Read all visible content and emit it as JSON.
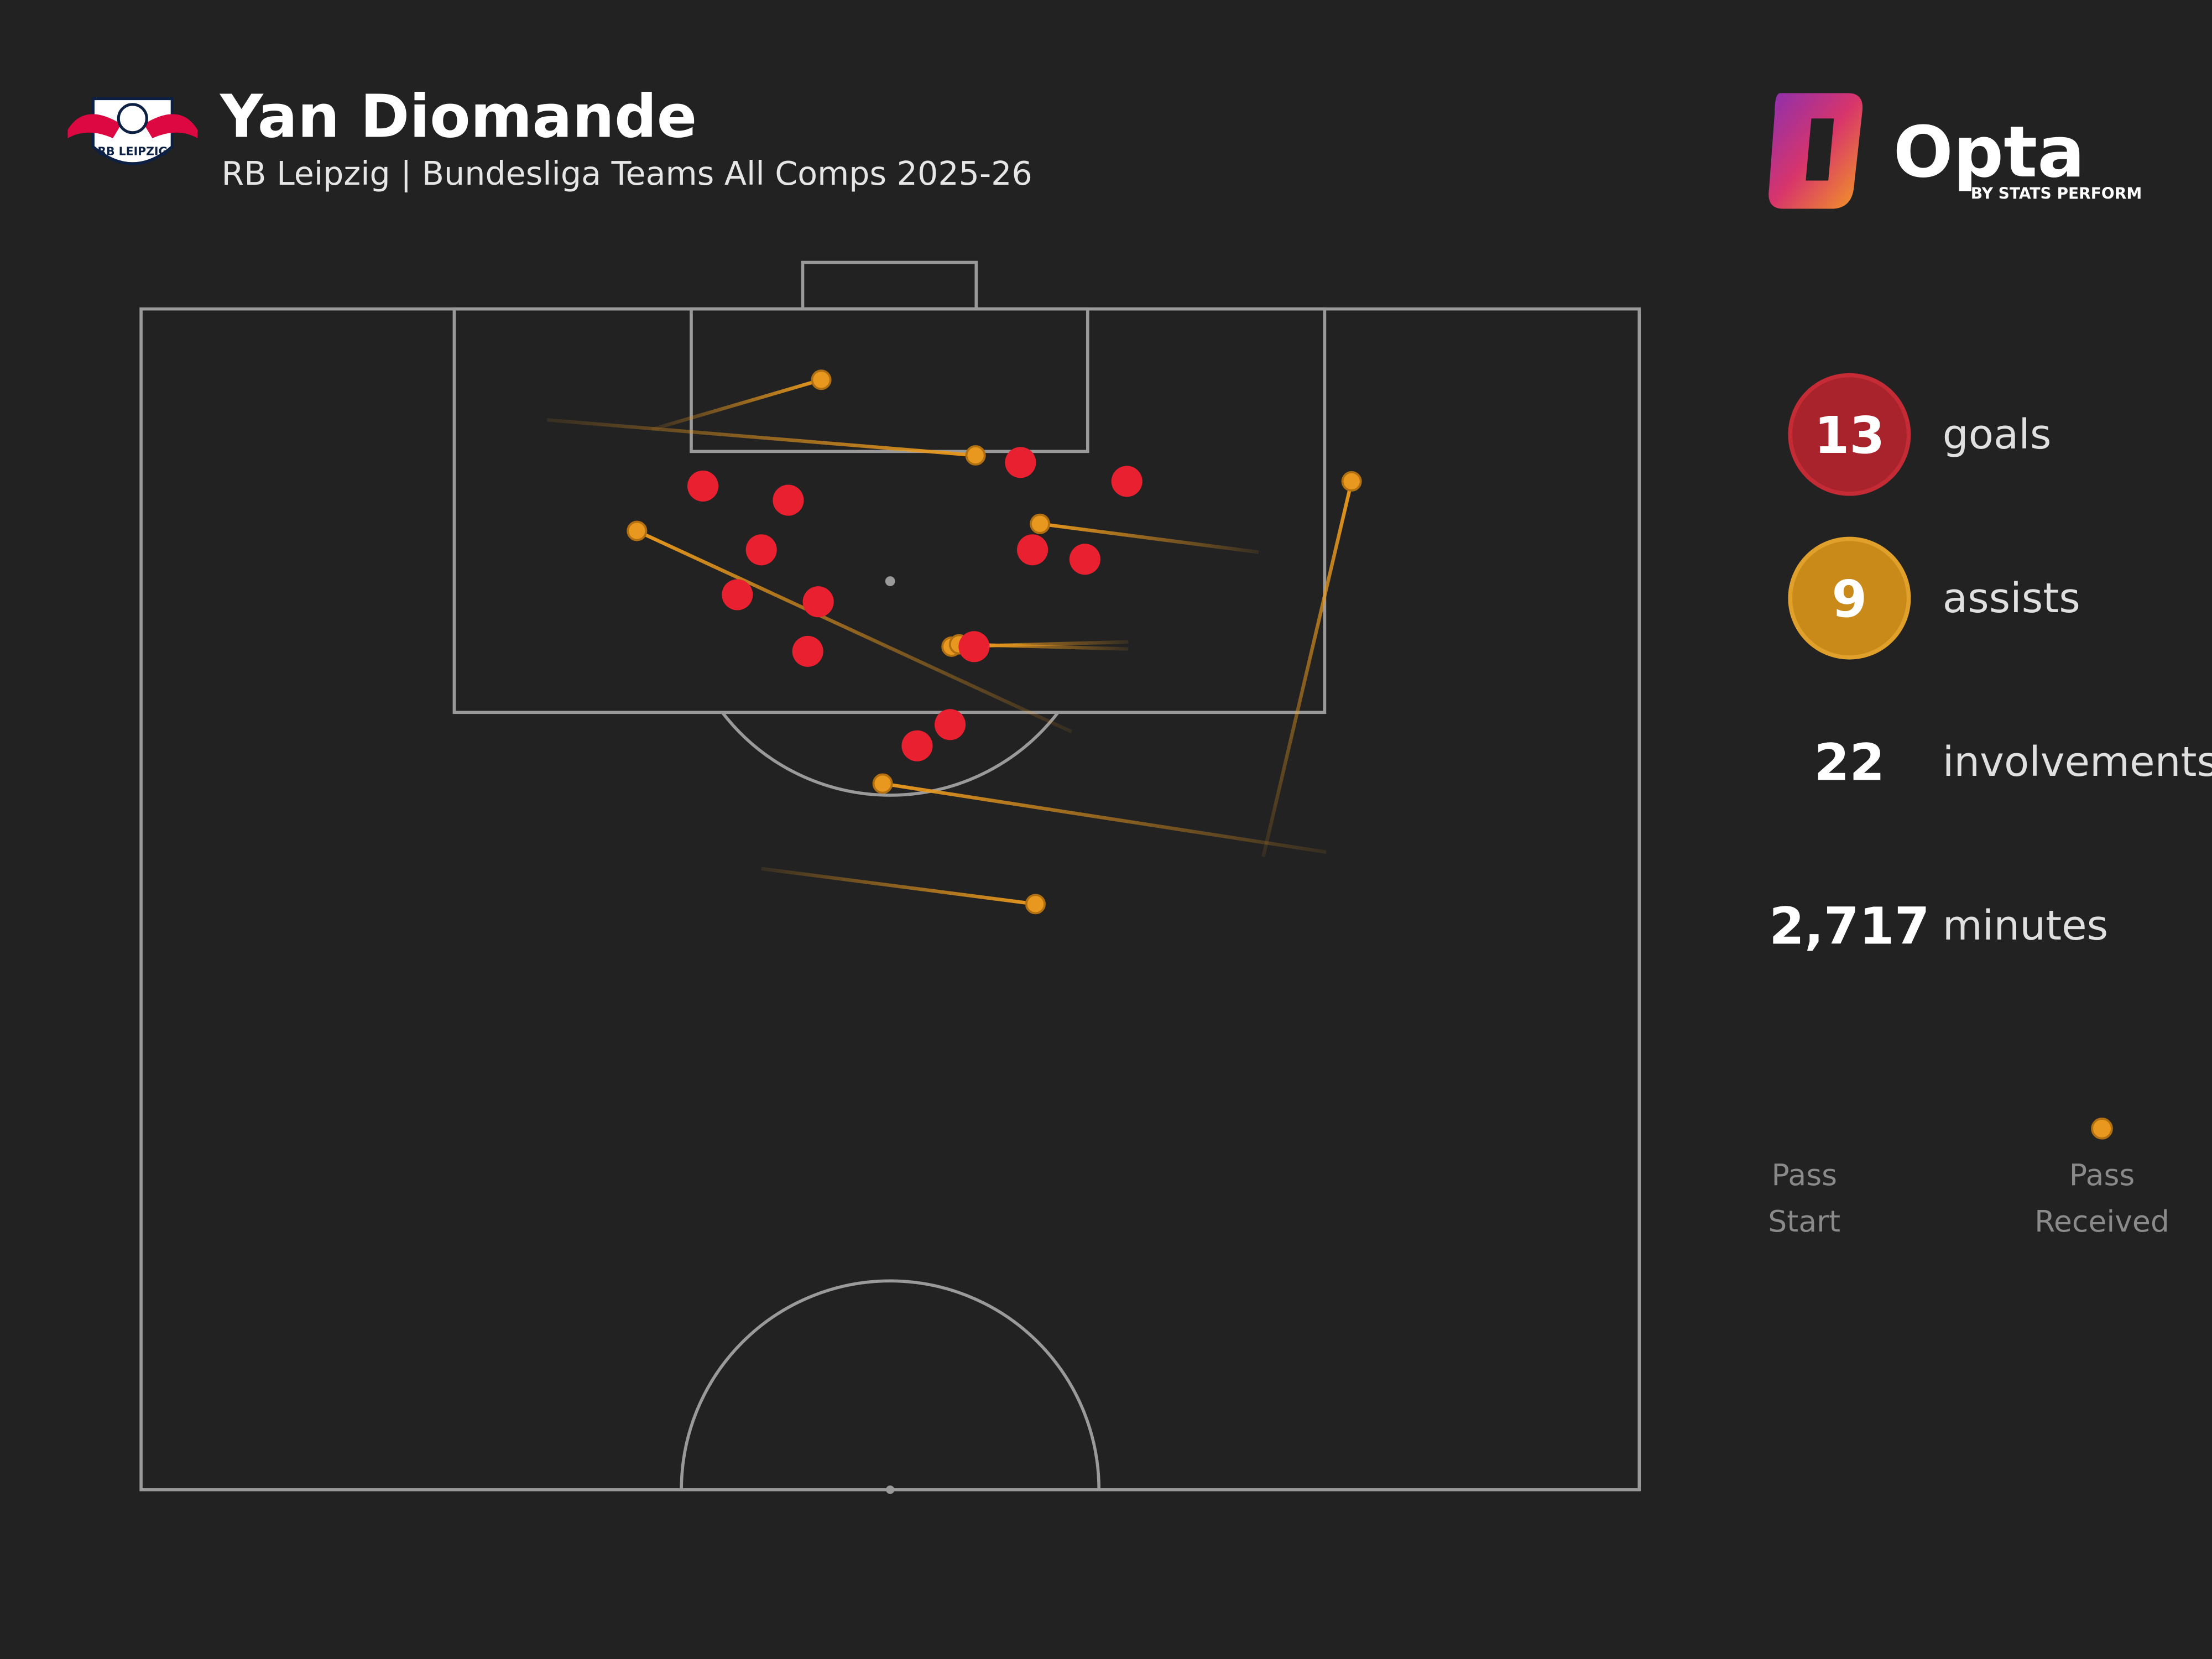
{
  "header": {
    "title": "Yan Diomande",
    "subtitle": "RB Leipzig | Bundesliga Teams All Comps 2025-26",
    "crest_text": "RB LEIPZIG"
  },
  "brand": {
    "name": "Opta",
    "byline": "BY STATS PERFORM"
  },
  "chart_data": {
    "type": "pitch",
    "xlim": [
      0,
      100
    ],
    "ylim": [
      50,
      100
    ],
    "goals": {
      "color": "#e8202f",
      "x": [
        37.5,
        43.2,
        58.7,
        65.8,
        41.4,
        59.5,
        63.0,
        39.8,
        45.2,
        44.5,
        55.6,
        54.0,
        51.8
      ],
      "y": [
        92.5,
        91.9,
        93.5,
        92.7,
        89.8,
        89.8,
        89.4,
        87.9,
        87.6,
        85.5,
        85.7,
        82.4,
        81.5
      ]
    },
    "assists": {
      "color": "#e8981e",
      "start_x": [
        34.1,
        27.1,
        74.6,
        62.1,
        65.9,
        65.9,
        74.9,
        79.1,
        41.4
      ],
      "start_y": [
        94.9,
        95.3,
        89.7,
        82.1,
        85.9,
        85.6,
        76.8,
        77.0,
        76.3
      ],
      "end_x": [
        45.4,
        55.7,
        60.0,
        33.1,
        54.1,
        54.6,
        80.8,
        49.5,
        59.7
      ],
      "end_y": [
        97.0,
        93.8,
        90.9,
        90.6,
        85.7,
        85.8,
        92.7,
        79.9,
        74.8
      ]
    }
  },
  "stats": [
    {
      "value": 13,
      "label": "goals"
    },
    {
      "value": 9,
      "label": "assists"
    },
    {
      "value": 22,
      "label": "involvements"
    },
    {
      "value": 2717,
      "value_label": "2,717",
      "label": "minutes"
    }
  ],
  "legend": {
    "start": [
      "Pass",
      "Start"
    ],
    "end": [
      "Pass",
      "Received"
    ]
  }
}
